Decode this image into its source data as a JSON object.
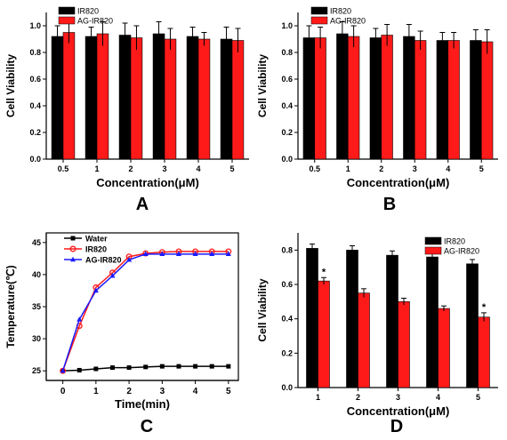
{
  "colors": {
    "ir820": "#000000",
    "ag_ir820": "#ff1a1a",
    "water": "#000000",
    "ag_line": "#1a1aff",
    "axis": "#000000"
  },
  "chart_data": [
    {
      "panel": "A",
      "type": "bar",
      "xlabel": "Concentration(μM)",
      "ylabel": "Cell Viability",
      "categories": [
        "0.5",
        "1",
        "2",
        "3",
        "4",
        "5"
      ],
      "ylim": [
        0,
        1.1
      ],
      "yticks": [
        "0.0",
        "0.2",
        "0.4",
        "0.6",
        "0.8",
        "1.0"
      ],
      "legend_position": "top-left",
      "series": [
        {
          "name": "IR820",
          "values": [
            0.92,
            0.92,
            0.93,
            0.94,
            0.92,
            0.9
          ],
          "errors": [
            0.08,
            0.07,
            0.09,
            0.09,
            0.07,
            0.09
          ]
        },
        {
          "name": "AG-IR820",
          "values": [
            0.95,
            0.94,
            0.91,
            0.9,
            0.9,
            0.89
          ],
          "errors": [
            0.08,
            0.09,
            0.09,
            0.08,
            0.05,
            0.09
          ]
        }
      ],
      "significance": []
    },
    {
      "panel": "B",
      "type": "bar",
      "xlabel": "Concentration(μM)",
      "ylabel": "Cell Viability",
      "categories": [
        "0.5",
        "1",
        "2",
        "3",
        "4",
        "5"
      ],
      "ylim": [
        0,
        1.1
      ],
      "yticks": [
        "0.0",
        "0.2",
        "0.4",
        "0.6",
        "0.8",
        "1.0"
      ],
      "legend_position": "top-left",
      "series": [
        {
          "name": "IR820",
          "values": [
            0.91,
            0.94,
            0.91,
            0.92,
            0.89,
            0.89
          ],
          "errors": [
            0.09,
            0.09,
            0.07,
            0.09,
            0.06,
            0.08
          ]
        },
        {
          "name": "AG-IR820",
          "values": [
            0.91,
            0.92,
            0.93,
            0.89,
            0.89,
            0.88
          ],
          "errors": [
            0.08,
            0.08,
            0.08,
            0.07,
            0.06,
            0.09
          ]
        }
      ],
      "significance": []
    },
    {
      "panel": "C",
      "type": "line",
      "xlabel": "Time(min)",
      "ylabel": "Temperature(℃)",
      "xlim": [
        -0.5,
        5.3
      ],
      "ylim": [
        23.5,
        46.5
      ],
      "xticks": [
        "0",
        "1",
        "2",
        "3",
        "4",
        "5"
      ],
      "yticks": [
        "25",
        "30",
        "35",
        "40",
        "45"
      ],
      "legend_position": "top-left",
      "x": [
        0,
        0.5,
        1,
        1.5,
        2,
        2.5,
        3,
        3.5,
        4,
        4.5,
        5
      ],
      "series": [
        {
          "name": "Water",
          "values": [
            25.0,
            25.1,
            25.3,
            25.5,
            25.5,
            25.6,
            25.7,
            25.7,
            25.7,
            25.7,
            25.7
          ],
          "marker": "square"
        },
        {
          "name": "IR820",
          "values": [
            25.0,
            32.0,
            38.0,
            40.3,
            42.8,
            43.3,
            43.5,
            43.6,
            43.6,
            43.6,
            43.6
          ],
          "marker": "circle"
        },
        {
          "name": "AG-IR820",
          "values": [
            25.0,
            33.0,
            37.5,
            39.8,
            42.3,
            43.2,
            43.2,
            43.2,
            43.2,
            43.2,
            43.2
          ],
          "marker": "triangle"
        }
      ]
    },
    {
      "panel": "D",
      "type": "bar",
      "xlabel": "Concentration(μM)",
      "ylabel": "Cell Viability",
      "categories": [
        "1",
        "2",
        "3",
        "4",
        "5"
      ],
      "ylim": [
        0,
        0.9
      ],
      "yticks": [
        "0.0",
        "0.2",
        "0.4",
        "0.6",
        "0.8"
      ],
      "legend_position": "top-right",
      "series": [
        {
          "name": "IR820",
          "values": [
            0.81,
            0.8,
            0.77,
            0.76,
            0.72
          ],
          "errors": [
            0.025,
            0.025,
            0.025,
            0.02,
            0.025
          ]
        },
        {
          "name": "AG-IR820",
          "values": [
            0.62,
            0.55,
            0.5,
            0.46,
            0.41
          ],
          "errors": [
            0.02,
            0.025,
            0.02,
            0.015,
            0.025
          ]
        }
      ],
      "significance": [
        {
          "series": 1,
          "category": 0,
          "text": "*"
        },
        {
          "series": 1,
          "category": 4,
          "text": "*"
        }
      ]
    }
  ]
}
